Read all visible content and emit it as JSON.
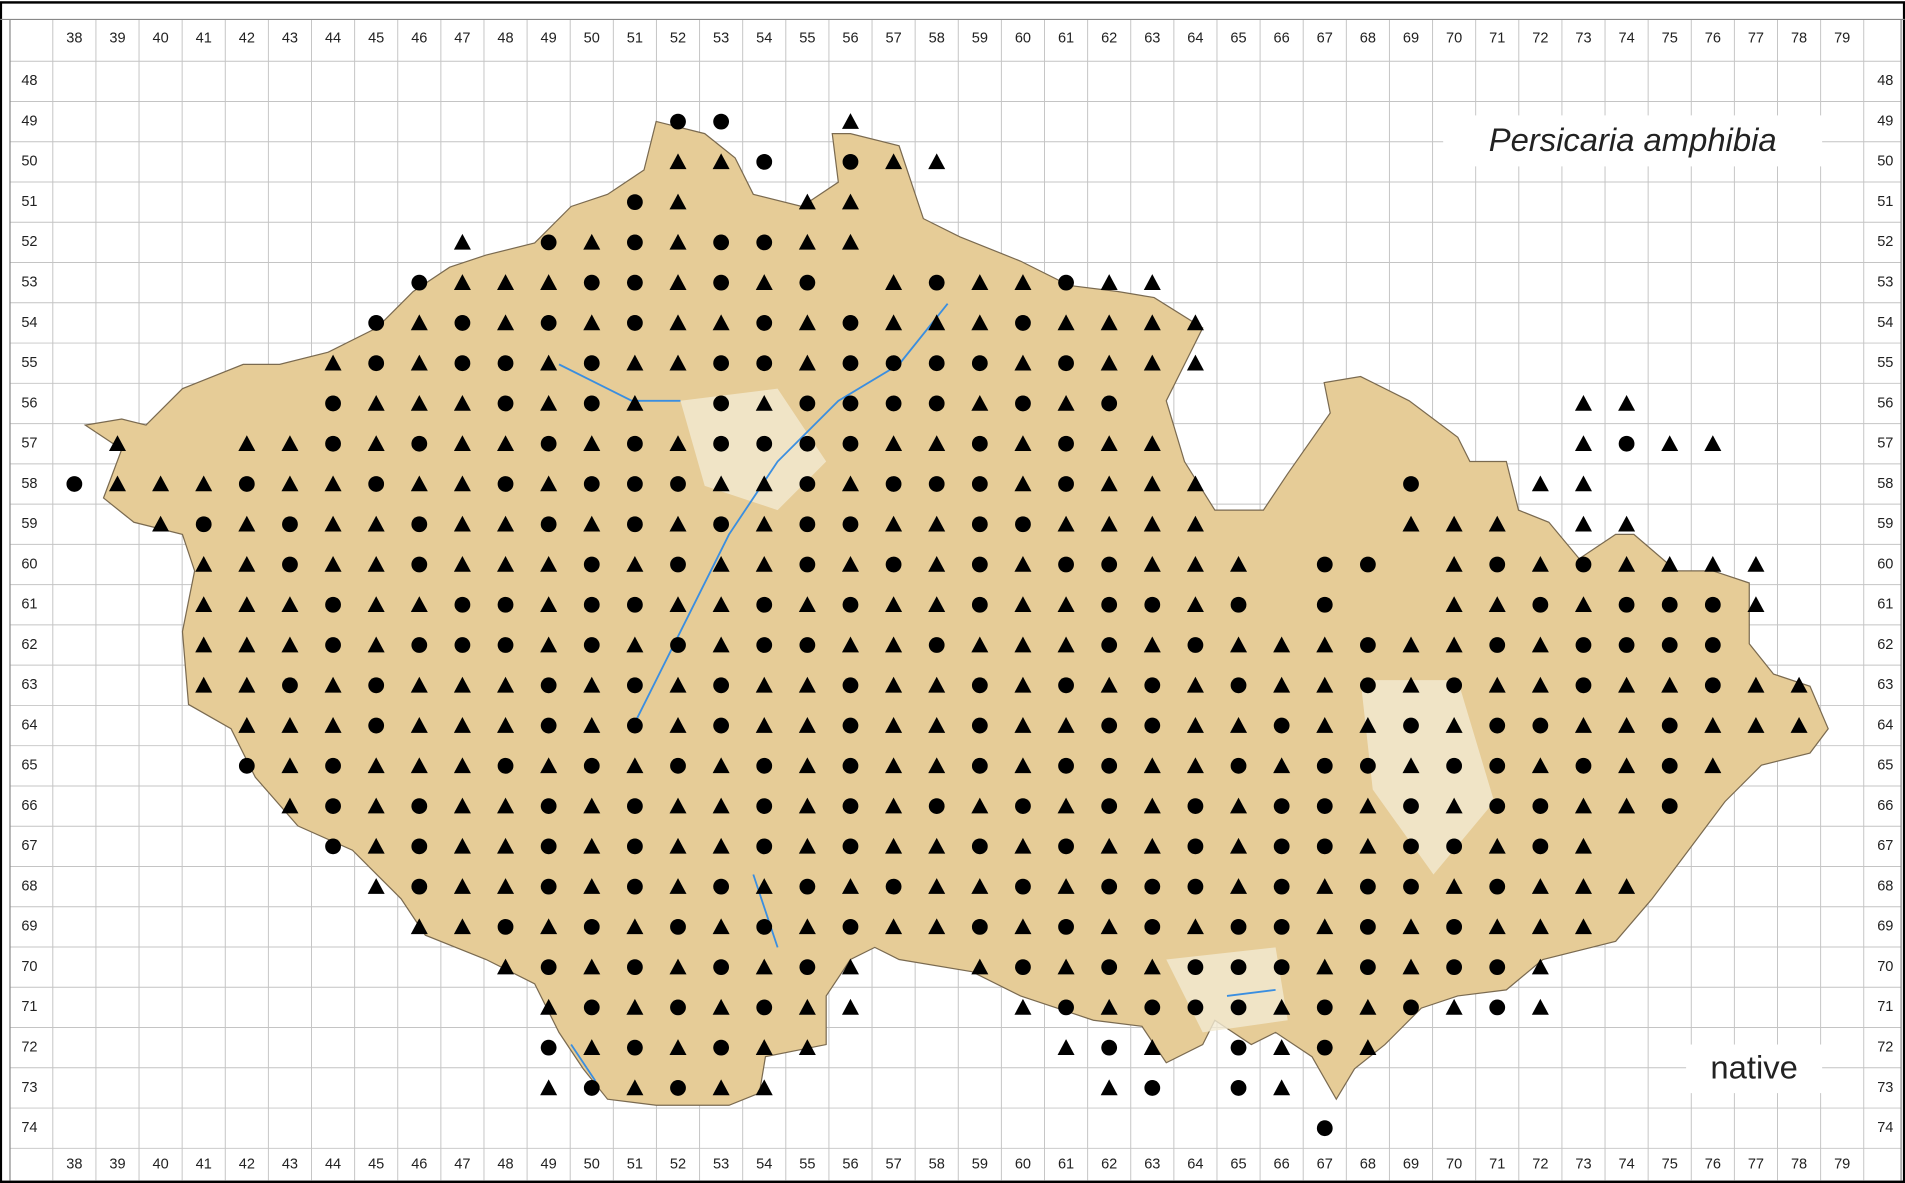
{
  "title": "Persicaria amphibia",
  "status": "native",
  "columns": [
    38,
    39,
    40,
    41,
    42,
    43,
    44,
    45,
    46,
    47,
    48,
    49,
    50,
    51,
    52,
    53,
    54,
    55,
    56,
    57,
    58,
    59,
    60,
    61,
    62,
    63,
    64,
    65,
    66,
    67,
    68,
    69,
    70,
    71,
    72,
    73,
    74,
    75,
    76,
    77,
    78,
    79
  ],
  "rows": [
    48,
    49,
    50,
    51,
    52,
    53,
    54,
    55,
    56,
    57,
    58,
    59,
    60,
    61,
    62,
    63,
    64,
    65,
    66,
    67,
    68,
    69,
    70,
    71,
    72,
    73,
    74
  ],
  "records": [
    "..........................................",
    "..............oo..a.......................",
    "..............aao.oaa.....................",
    ".............oa..aa.......................",
    ".........a.oaoaooaa.......................",
    "........oaaaooaoao.aoaaoaa................",
    ".......oaoaoaoaaoaoaaaoaaaa...............",
    "......aoaooaoaaooaooooaoaaa...............",
    "......oaaaoaoa.oaooooaoao..........aa.....",
    ".a..aaoaoaaoaoaooooaaoaoaa.........aoaa...",
    "oaaaoaaoaaoaoooaaoaoooaoaaa....o..aa......",
    "..aoaoaaoaaoaoaoaooaaooaaaa....aaa.aa.....",
    "...aaoaaoaaaoaoaaoaoaoaooaaa.oo.aoaoaaaa..",
    "...aaaoaaooaooaaoaoaaoaaooao.o..aaoaoooa..",
    "...aaaoaoooaoaoaooaaoaaaoaoaaaoaaoaoooo...",
    "...aaoaoaaaoaoaoaaoaaoaoaoaoaaoaoaaoaaoaa.",
    "....aaaoaaaoaoaoaaoaaoaaooaaoaaoaooaaoaaa.",
    "....oaoaaaoaoaoaoaoaaoaooaaoaooaooaoaoa...",
    ".....aoaoaaoaoaaoaoaoaoaoaoaooaoaooaao....",
    "......oaoaaoaoaaoaoaaoaoaaoaooaooaoa......",
    ".......aoaaoaoaoaoaoaaoaoooaoaooaoaaa.....",
    "........aaoaoaoaoaoaaoaoaoaooaoaoaaa......",
    "..........aoaoaoaoa..aoaoaoooaoaooa.......",
    "...........aoaoaoaa...aoaoooaoaoaoa.......",
    "...........oaoaoaa.....aoa.oaoa...........",
    "...........aoaoaa.......ao.oa.............",
    ".............................o............"
  ]
}
